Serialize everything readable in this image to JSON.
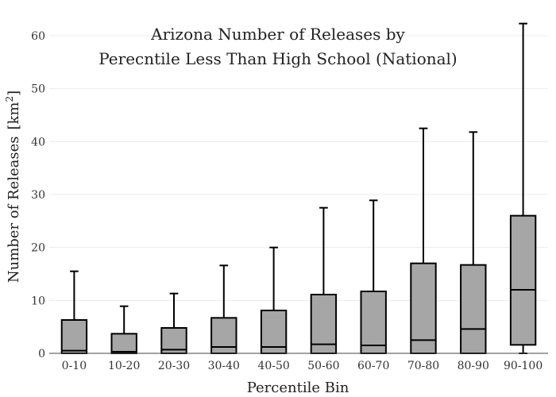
{
  "chart_data": {
    "type": "box",
    "title_lines": [
      "Arizona Number of Releases by",
      "Perecntile Less Than High School (National)"
    ],
    "xlabel": "Percentile Bin",
    "ylabel_main": "Number of Releases",
    "ylabel_unit": "[km",
    "ylabel_sup": "2",
    "ylabel_close": "]",
    "ylim": [
      0,
      60
    ],
    "yticks": [
      "0",
      "10",
      "20",
      "30",
      "40",
      "50",
      "60"
    ],
    "grid": true,
    "categories": [
      "0-10",
      "10-20",
      "20-30",
      "30-40",
      "40-50",
      "50-60",
      "60-70",
      "70-80",
      "80-90",
      "90-100"
    ],
    "boxes": [
      {
        "min": 0,
        "q1": 0,
        "median": 0.5,
        "q3": 6.3,
        "max": 15.5
      },
      {
        "min": 0,
        "q1": 0,
        "median": 0.3,
        "q3": 3.7,
        "max": 8.9
      },
      {
        "min": 0,
        "q1": 0,
        "median": 0.7,
        "q3": 4.8,
        "max": 11.3
      },
      {
        "min": 0,
        "q1": 0,
        "median": 1.2,
        "q3": 6.7,
        "max": 16.6
      },
      {
        "min": 0,
        "q1": 0,
        "median": 1.2,
        "q3": 8.1,
        "max": 20.0
      },
      {
        "min": 0,
        "q1": 0,
        "median": 1.7,
        "q3": 11.1,
        "max": 27.5
      },
      {
        "min": 0,
        "q1": 0,
        "median": 1.5,
        "q3": 11.7,
        "max": 28.9
      },
      {
        "min": 0,
        "q1": 0,
        "median": 2.5,
        "q3": 17.0,
        "max": 42.5
      },
      {
        "min": 0,
        "q1": 0,
        "median": 4.6,
        "q3": 16.7,
        "max": 41.8
      },
      {
        "min": 0,
        "q1": 1.6,
        "median": 12.0,
        "q3": 26.0,
        "max": 62.3
      }
    ]
  }
}
